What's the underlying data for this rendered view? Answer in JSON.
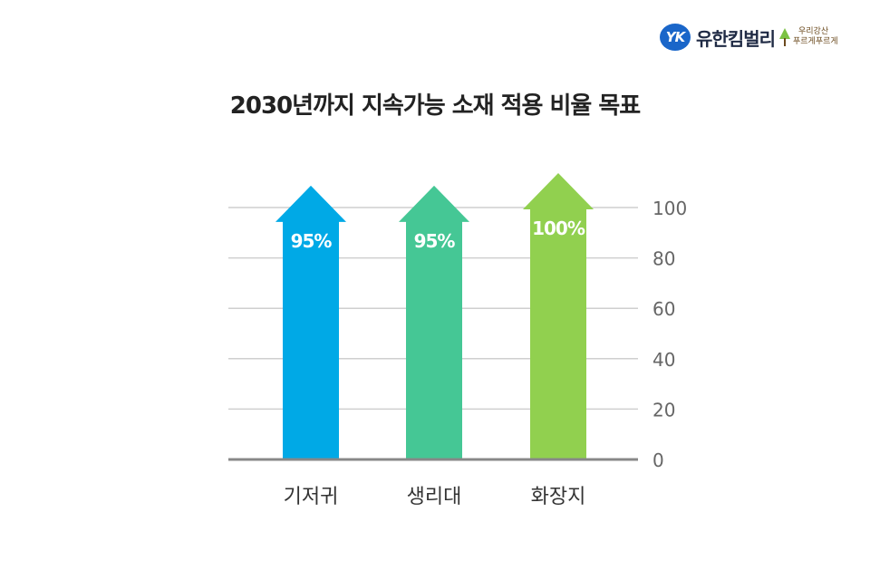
{
  "brand": {
    "logo_mark": "YK",
    "name": "유한킴벌리",
    "slogan_line1": "우리강산",
    "slogan_line2": "푸르게푸르게"
  },
  "chart_data": {
    "type": "bar",
    "title": "2030년까지 지속가능 소재 적용 비율 목표",
    "categories": [
      "기저귀",
      "생리대",
      "화장지"
    ],
    "values": [
      95,
      95,
      100
    ],
    "value_labels": [
      "95%",
      "95%",
      "100%"
    ],
    "colors": [
      "#00a9e6",
      "#45c795",
      "#91d04f"
    ],
    "ylim": [
      0,
      100
    ],
    "yticks": [
      0,
      20,
      40,
      60,
      80,
      100
    ],
    "ytick_labels": [
      "0",
      "20",
      "40",
      "60",
      "80",
      "100"
    ],
    "grid": true,
    "y_axis_side": "right",
    "bar_shape": "arrow"
  }
}
